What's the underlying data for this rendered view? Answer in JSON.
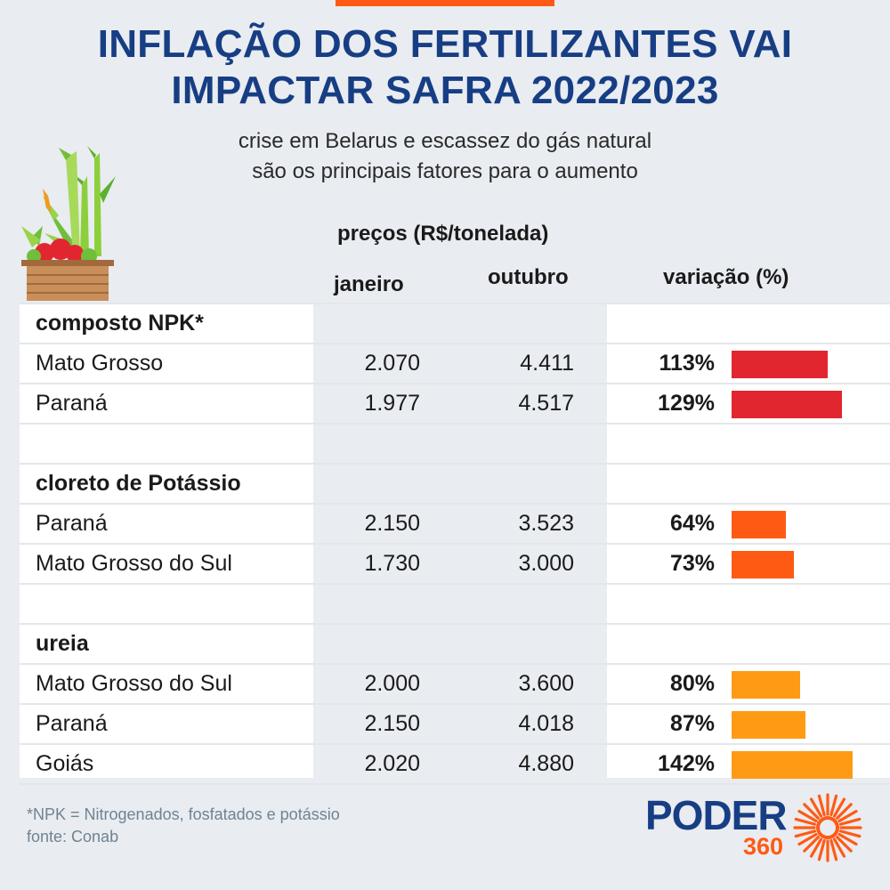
{
  "title_line1": "INFLAÇÃO DOS FERTILIZANTES VAI",
  "title_line2": "IMPACTAR SAFRA 2022/2023",
  "subtitle_line1": "crise em Belarus e escassez do gás natural",
  "subtitle_line2": "são os principais fatores para o aumento",
  "table_header": {
    "prices": "preços (R$/tonelada)",
    "january": "janeiro",
    "october": "outubro",
    "variation": "variação (%)"
  },
  "colors": {
    "npk": "#e1262f",
    "potassio": "#ff5a14",
    "ureia": "#ff9a14",
    "title": "#173e84",
    "accent": "#ff5a14"
  },
  "chart_data": {
    "type": "table",
    "title": "INFLAÇÃO DOS FERTILIZANTES VAI IMPACTAR SAFRA 2022/2023",
    "columns": [
      "janeiro",
      "outubro",
      "variação (%)"
    ],
    "unit": "R$/tonelada",
    "groups": [
      {
        "name": "composto NPK*",
        "color_key": "npk",
        "rows": [
          {
            "label": "Mato Grosso",
            "janeiro": "2.070",
            "outubro": "4.411",
            "variacao_text": "113%",
            "variacao": 113
          },
          {
            "label": "Paraná",
            "janeiro": "1.977",
            "outubro": "4.517",
            "variacao_text": "129%",
            "variacao": 129
          }
        ]
      },
      {
        "name": "cloreto de Potássio",
        "color_key": "potassio",
        "rows": [
          {
            "label": "Paraná",
            "janeiro": "2.150",
            "outubro": "3.523",
            "variacao_text": "64%",
            "variacao": 64
          },
          {
            "label": "Mato Grosso do Sul",
            "janeiro": "1.730",
            "outubro": "3.000",
            "variacao_text": "73%",
            "variacao": 73
          }
        ]
      },
      {
        "name": "ureia",
        "color_key": "ureia",
        "rows": [
          {
            "label": "Mato Grosso do Sul",
            "janeiro": "2.000",
            "outubro": "3.600",
            "variacao_text": "80%",
            "variacao": 80
          },
          {
            "label": "Paraná",
            "janeiro": "2.150",
            "outubro": "4.018",
            "variacao_text": "87%",
            "variacao": 87
          },
          {
            "label": "Goiás",
            "janeiro": "2.020",
            "outubro": "4.880",
            "variacao_text": "142%",
            "variacao": 142
          }
        ]
      }
    ],
    "variation_max": 142
  },
  "footnote": "*NPK = Nitrogenados, fosfatados e potássio",
  "source": "fonte: Conab",
  "logo": {
    "word": "PODER",
    "number": "360"
  }
}
